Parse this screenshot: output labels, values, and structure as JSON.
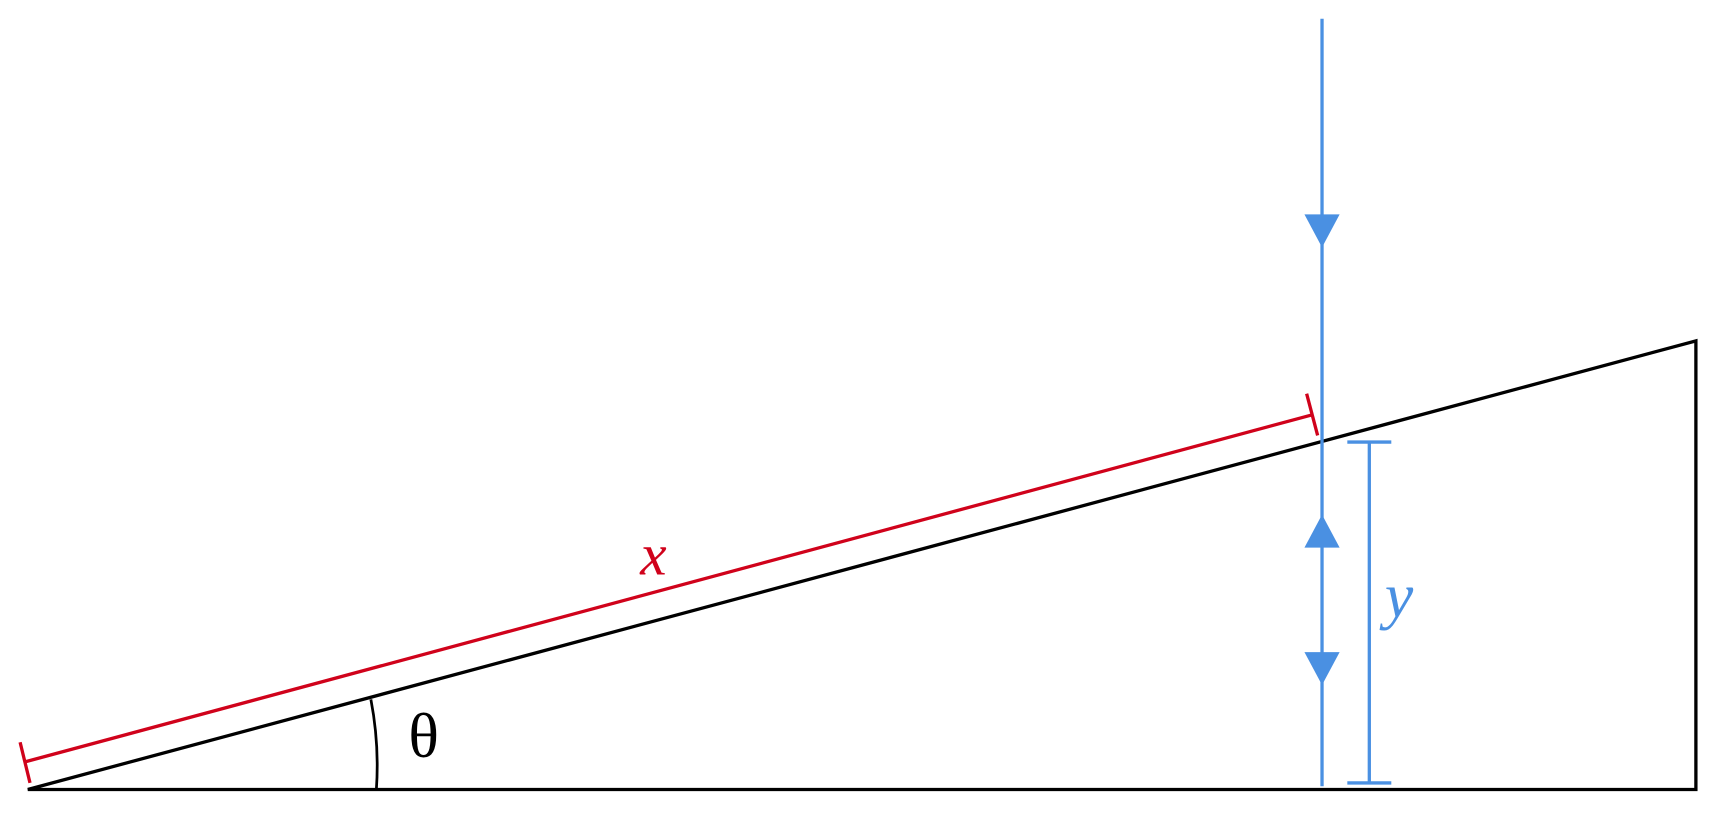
{
  "labels": {
    "slope_length": "x",
    "height": "y",
    "angle": "θ"
  }
}
